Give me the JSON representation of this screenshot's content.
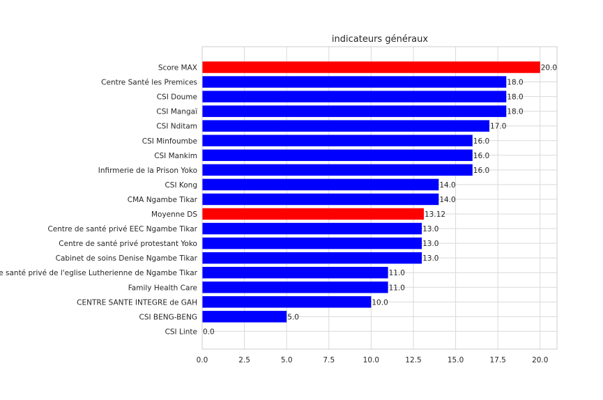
{
  "chart_data": {
    "type": "bar",
    "orientation": "horizontal",
    "title": "indicateurs généraux",
    "xlabel": "",
    "ylabel": "",
    "xlim": [
      0,
      21
    ],
    "xticks": [
      "0.0",
      "2.5",
      "5.0",
      "7.5",
      "10.0",
      "12.5",
      "15.0",
      "17.5",
      "20.0"
    ],
    "grid": true,
    "legend": "none",
    "categories": [
      "Score MAX",
      "Centre Santé les Premices",
      "CSI Doume",
      "CSI Mangaï",
      "CSI Nditam",
      "CSI Minfoumbe",
      "CSI Mankim",
      "Infirmerie de la Prison Yoko",
      "CSI Kong",
      "CMA Ngambe Tikar",
      "Moyenne DS",
      "Centre de santé privé EEC Ngambe Tikar",
      "Centre de santé privé protestant Yoko",
      "Cabinet de soins Denise Ngambe Tikar",
      "Centre de santé privé  de l'eglise Lutherienne de Ngambe Tikar",
      "Family Health Care",
      "CENTRE SANTE INTEGRE  de GAH",
      "CSI BENG-BENG",
      "CSI Linte"
    ],
    "values": [
      20.0,
      18.0,
      18.0,
      18.0,
      17.0,
      16.0,
      16.0,
      16.0,
      14.0,
      14.0,
      13.12,
      13.0,
      13.0,
      13.0,
      11.0,
      11.0,
      10.0,
      5.0,
      0.0
    ],
    "value_labels": [
      "20.0",
      "18.0",
      "18.0",
      "18.0",
      "17.0",
      "16.0",
      "16.0",
      "16.0",
      "14.0",
      "14.0",
      "13.12",
      "13.0",
      "13.0",
      "13.0",
      "11.0",
      "11.0",
      "10.0",
      "5.0",
      "0.0"
    ],
    "bar_colors": [
      "#ff0000",
      "#0000ff",
      "#0000ff",
      "#0000ff",
      "#0000ff",
      "#0000ff",
      "#0000ff",
      "#0000ff",
      "#0000ff",
      "#0000ff",
      "#ff0000",
      "#0000ff",
      "#0000ff",
      "#0000ff",
      "#0000ff",
      "#0000ff",
      "#0000ff",
      "#0000ff",
      "#0000ff"
    ]
  }
}
